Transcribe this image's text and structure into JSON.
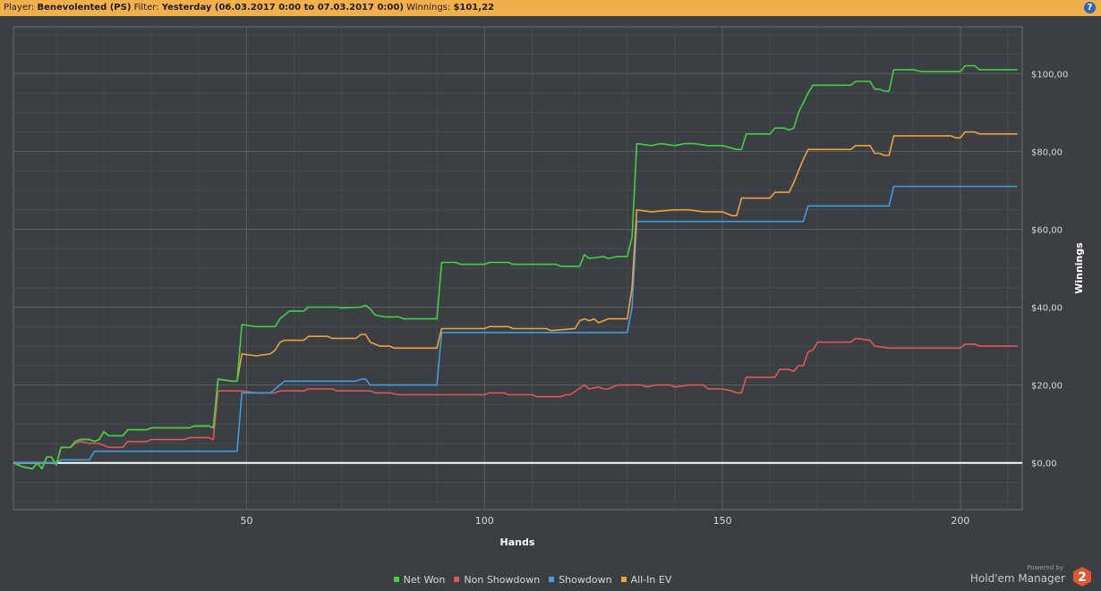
{
  "filter_bar": {
    "player_label": "Player:",
    "player_value": "Benevolented (PS)",
    "filter_label": "Filter:",
    "filter_value": "Yesterday (06.03.2017 0:00 to 07.03.2017 0:00)",
    "winnings_label": "Winnings:",
    "winnings_value": "$101,22",
    "help_icon": "help-icon",
    "help_text": "?"
  },
  "branding": {
    "powered_by": "Powered by",
    "product": "Hold'em Manager",
    "badge": "2"
  },
  "colors": {
    "background": "#3b3f44",
    "header": "#f2b04c",
    "zero_line": "#ffffff"
  },
  "chart_data": {
    "type": "line",
    "xlabel": "Hands",
    "ylabel": "Winnings",
    "xlim": [
      1,
      213
    ],
    "ylim": [
      -12,
      112
    ],
    "x_ticks": [
      50,
      100,
      150,
      200
    ],
    "y_ticks": [
      0,
      20,
      40,
      60,
      80,
      100
    ],
    "y_tick_labels": [
      "$0,00",
      "$20,00",
      "$40,00",
      "$60,00",
      "$80,00",
      "$100,00"
    ],
    "grid": true,
    "legend_position": "bottom",
    "series": [
      {
        "name": "Net Won",
        "color": "#3fd13f",
        "points": [
          [
            1,
            0
          ],
          [
            3,
            -1
          ],
          [
            5,
            -1.5
          ],
          [
            6,
            0
          ],
          [
            7,
            -1.5
          ],
          [
            8,
            1.5
          ],
          [
            9,
            1.5
          ],
          [
            10,
            -0.5
          ],
          [
            11,
            4
          ],
          [
            13,
            4
          ],
          [
            14,
            5.5
          ],
          [
            15,
            6
          ],
          [
            17,
            6
          ],
          [
            18,
            5.5
          ],
          [
            19,
            6
          ],
          [
            20,
            8
          ],
          [
            21,
            7
          ],
          [
            24,
            7
          ],
          [
            25,
            8.5
          ],
          [
            29,
            8.5
          ],
          [
            30,
            9
          ],
          [
            38,
            9
          ],
          [
            39,
            9.5
          ],
          [
            42,
            9.5
          ],
          [
            43,
            9
          ],
          [
            44,
            21.5
          ],
          [
            47,
            21
          ],
          [
            48,
            21
          ],
          [
            49,
            35.5
          ],
          [
            52,
            35
          ],
          [
            56,
            35
          ],
          [
            57,
            37
          ],
          [
            58,
            38
          ],
          [
            59,
            39
          ],
          [
            62,
            39
          ],
          [
            63,
            40
          ],
          [
            69,
            40
          ],
          [
            70,
            39.8
          ],
          [
            74,
            40
          ],
          [
            75,
            40.5
          ],
          [
            76,
            39.5
          ],
          [
            77,
            38
          ],
          [
            79,
            37.5
          ],
          [
            82,
            37.5
          ],
          [
            83,
            37
          ],
          [
            90,
            37
          ],
          [
            91,
            51.5
          ],
          [
            94,
            51.5
          ],
          [
            95,
            51
          ],
          [
            100,
            51
          ],
          [
            101,
            51.5
          ],
          [
            105,
            51.5
          ],
          [
            106,
            51
          ],
          [
            115,
            51
          ],
          [
            116,
            50.5
          ],
          [
            120,
            50.5
          ],
          [
            121,
            53.5
          ],
          [
            122,
            52.5
          ],
          [
            125,
            53
          ],
          [
            126,
            52.5
          ],
          [
            128,
            53
          ],
          [
            130,
            53
          ],
          [
            131,
            58
          ],
          [
            132,
            82
          ],
          [
            135,
            81.5
          ],
          [
            137,
            82
          ],
          [
            140,
            81.5
          ],
          [
            142,
            82
          ],
          [
            144,
            82
          ],
          [
            147,
            81.5
          ],
          [
            150,
            81.5
          ],
          [
            153,
            80.5
          ],
          [
            154,
            80.5
          ],
          [
            155,
            84.5
          ],
          [
            160,
            84.5
          ],
          [
            161,
            86
          ],
          [
            163,
            86
          ],
          [
            164,
            85.5
          ],
          [
            165,
            86
          ],
          [
            166,
            90
          ],
          [
            168,
            95
          ],
          [
            169,
            97
          ],
          [
            173,
            97
          ],
          [
            176,
            97
          ],
          [
            177,
            97
          ],
          [
            178,
            98
          ],
          [
            181,
            98
          ],
          [
            182,
            96
          ],
          [
            183,
            96
          ],
          [
            184,
            95.5
          ],
          [
            185,
            95.5
          ],
          [
            186,
            101
          ],
          [
            190,
            101
          ],
          [
            192,
            100.5
          ],
          [
            200,
            100.5
          ],
          [
            201,
            102
          ],
          [
            203,
            102
          ],
          [
            204,
            101
          ],
          [
            212,
            101
          ]
        ]
      },
      {
        "name": "Non Showdown",
        "color": "#e05757",
        "points": [
          [
            1,
            0
          ],
          [
            3,
            -1
          ],
          [
            5,
            -1.5
          ],
          [
            6,
            0
          ],
          [
            7,
            -1.5
          ],
          [
            8,
            1.5
          ],
          [
            9,
            1.5
          ],
          [
            10,
            -0.5
          ],
          [
            11,
            4
          ],
          [
            13,
            4
          ],
          [
            14,
            5
          ],
          [
            15,
            5.5
          ],
          [
            17,
            5
          ],
          [
            19,
            5
          ],
          [
            20,
            4.5
          ],
          [
            21,
            4
          ],
          [
            24,
            4
          ],
          [
            25,
            5.5
          ],
          [
            29,
            5.5
          ],
          [
            30,
            6
          ],
          [
            37,
            6
          ],
          [
            38,
            6.5
          ],
          [
            42,
            6.5
          ],
          [
            43,
            6
          ],
          [
            44,
            18.5
          ],
          [
            49,
            18.5
          ],
          [
            52,
            18
          ],
          [
            56,
            18
          ],
          [
            57,
            18.5
          ],
          [
            62,
            18.5
          ],
          [
            63,
            19
          ],
          [
            68,
            19
          ],
          [
            69,
            18.5
          ],
          [
            76,
            18.5
          ],
          [
            77,
            18
          ],
          [
            80,
            18
          ],
          [
            82,
            17.5
          ],
          [
            90,
            17.5
          ],
          [
            91,
            17.5
          ],
          [
            100,
            17.5
          ],
          [
            101,
            18
          ],
          [
            104,
            18
          ],
          [
            105,
            17.5
          ],
          [
            110,
            17.5
          ],
          [
            111,
            17
          ],
          [
            116,
            17
          ],
          [
            117,
            17.5
          ],
          [
            118,
            17.5
          ],
          [
            121,
            20
          ],
          [
            122,
            19
          ],
          [
            124,
            19.5
          ],
          [
            125,
            19
          ],
          [
            126,
            19
          ],
          [
            128,
            20
          ],
          [
            131,
            20
          ],
          [
            133,
            20
          ],
          [
            134,
            19.5
          ],
          [
            136,
            20
          ],
          [
            139,
            20
          ],
          [
            140,
            19.5
          ],
          [
            143,
            20
          ],
          [
            146,
            20
          ],
          [
            147,
            19
          ],
          [
            150,
            19
          ],
          [
            152,
            18.5
          ],
          [
            153,
            18
          ],
          [
            154,
            18
          ],
          [
            155,
            22
          ],
          [
            161,
            22
          ],
          [
            162,
            24
          ],
          [
            164,
            24
          ],
          [
            165,
            23.5
          ],
          [
            166,
            25
          ],
          [
            167,
            25
          ],
          [
            168,
            28.5
          ],
          [
            169,
            29
          ],
          [
            170,
            31
          ],
          [
            176,
            31
          ],
          [
            177,
            31
          ],
          [
            178,
            32
          ],
          [
            181,
            31.5
          ],
          [
            182,
            30
          ],
          [
            185,
            29.5
          ],
          [
            200,
            29.5
          ],
          [
            201,
            30.5
          ],
          [
            203,
            30.5
          ],
          [
            204,
            30
          ],
          [
            212,
            30
          ]
        ]
      },
      {
        "name": "Showdown",
        "color": "#3d9ee0",
        "points": [
          [
            1,
            0
          ],
          [
            10,
            0
          ],
          [
            11,
            0.8
          ],
          [
            17,
            0.8
          ],
          [
            18,
            3
          ],
          [
            47,
            3
          ],
          [
            48,
            3
          ],
          [
            49,
            18
          ],
          [
            55,
            18
          ],
          [
            56,
            19
          ],
          [
            57,
            20
          ],
          [
            58,
            21
          ],
          [
            73,
            21
          ],
          [
            74,
            21.5
          ],
          [
            75,
            21.5
          ],
          [
            76,
            20
          ],
          [
            90,
            20
          ],
          [
            91,
            33.5
          ],
          [
            130,
            33.5
          ],
          [
            131,
            40
          ],
          [
            132,
            62
          ],
          [
            167,
            62
          ],
          [
            168,
            66
          ],
          [
            185,
            66
          ],
          [
            186,
            71
          ],
          [
            212,
            71
          ]
        ]
      },
      {
        "name": "All-In EV",
        "color": "#f0a03c",
        "points": [
          [
            1,
            0
          ],
          [
            3,
            -1
          ],
          [
            5,
            -1.5
          ],
          [
            6,
            0
          ],
          [
            7,
            -1.5
          ],
          [
            8,
            1.5
          ],
          [
            9,
            1.5
          ],
          [
            10,
            -0.5
          ],
          [
            11,
            4
          ],
          [
            13,
            4
          ],
          [
            14,
            5.5
          ],
          [
            15,
            6
          ],
          [
            17,
            6
          ],
          [
            18,
            5.5
          ],
          [
            19,
            6
          ],
          [
            20,
            8
          ],
          [
            21,
            7
          ],
          [
            24,
            7
          ],
          [
            25,
            8.5
          ],
          [
            29,
            8.5
          ],
          [
            30,
            9
          ],
          [
            38,
            9
          ],
          [
            39,
            9.5
          ],
          [
            42,
            9.5
          ],
          [
            43,
            9
          ],
          [
            44,
            21.5
          ],
          [
            47,
            21
          ],
          [
            48,
            21
          ],
          [
            49,
            28
          ],
          [
            52,
            27.5
          ],
          [
            55,
            28
          ],
          [
            56,
            29
          ],
          [
            57,
            31
          ],
          [
            58,
            31.5
          ],
          [
            62,
            31.5
          ],
          [
            63,
            32.5
          ],
          [
            67,
            32.5
          ],
          [
            68,
            32
          ],
          [
            73,
            32
          ],
          [
            74,
            33
          ],
          [
            75,
            33
          ],
          [
            76,
            31
          ],
          [
            78,
            30
          ],
          [
            80,
            30
          ],
          [
            81,
            29.5
          ],
          [
            90,
            29.5
          ],
          [
            91,
            34.5
          ],
          [
            95,
            34.5
          ],
          [
            100,
            34.5
          ],
          [
            101,
            35
          ],
          [
            105,
            35
          ],
          [
            106,
            34.5
          ],
          [
            113,
            34.5
          ],
          [
            114,
            34
          ],
          [
            119,
            34.5
          ],
          [
            120,
            36.5
          ],
          [
            121,
            37
          ],
          [
            122,
            36.5
          ],
          [
            123,
            37
          ],
          [
            124,
            36
          ],
          [
            125,
            36.5
          ],
          [
            126,
            37
          ],
          [
            130,
            37
          ],
          [
            131,
            45
          ],
          [
            132,
            65
          ],
          [
            135,
            64.5
          ],
          [
            140,
            65
          ],
          [
            143,
            65
          ],
          [
            146,
            64.5
          ],
          [
            150,
            64.5
          ],
          [
            152,
            63.5
          ],
          [
            153,
            63.5
          ],
          [
            154,
            68
          ],
          [
            160,
            68
          ],
          [
            161,
            69.5
          ],
          [
            164,
            69.5
          ],
          [
            165,
            72
          ],
          [
            166,
            75
          ],
          [
            167,
            78
          ],
          [
            168,
            80.5
          ],
          [
            173,
            80.5
          ],
          [
            176,
            80.5
          ],
          [
            177,
            80.5
          ],
          [
            178,
            81.5
          ],
          [
            181,
            81.5
          ],
          [
            182,
            79.5
          ],
          [
            183,
            79.5
          ],
          [
            184,
            79
          ],
          [
            185,
            79
          ],
          [
            186,
            84
          ],
          [
            196,
            84
          ],
          [
            198,
            84
          ],
          [
            199,
            83.5
          ],
          [
            200,
            83.5
          ],
          [
            201,
            85
          ],
          [
            203,
            85
          ],
          [
            204,
            84.5
          ],
          [
            212,
            84.5
          ]
        ]
      }
    ]
  }
}
